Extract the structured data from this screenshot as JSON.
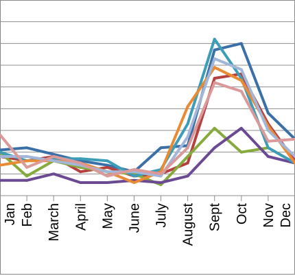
{
  "chart_data": {
    "type": "line",
    "title": "",
    "xlabel": "",
    "ylabel": "",
    "categories": [
      "Jan",
      "Feb",
      "March",
      "April",
      "May",
      "June",
      "July",
      "August",
      "Sept",
      "Oct",
      "Nov",
      "Dec"
    ],
    "ylim": [
      0,
      9
    ],
    "grid": true,
    "legend": "none",
    "series": [
      {
        "color": "#3a6fa8",
        "values": [
          2.1,
          2.2,
          1.9,
          1.6,
          1.4,
          1.1,
          2.2,
          2.3,
          6.7,
          7.0,
          3.8,
          2.6
        ]
      },
      {
        "color": "#b5413e",
        "values": [
          1.8,
          1.6,
          1.8,
          1.1,
          1.3,
          0.9,
          1.0,
          1.5,
          5.4,
          5.6,
          3.3,
          1.6
        ]
      },
      {
        "color": "#86aa3d",
        "values": [
          2.0,
          0.9,
          1.6,
          1.3,
          1.1,
          1.0,
          0.5,
          1.8,
          3.1,
          2.0,
          2.2,
          1.5
        ]
      },
      {
        "color": "#6c4a93",
        "values": [
          0.7,
          0.7,
          1.0,
          0.6,
          0.6,
          0.7,
          0.6,
          0.9,
          2.2,
          3.1,
          1.8,
          1.5
        ]
      },
      {
        "color": "#3d9db8",
        "values": [
          2.0,
          1.6,
          1.7,
          1.7,
          1.6,
          0.9,
          1.2,
          3.3,
          7.2,
          5.4,
          2.2,
          1.5
        ]
      },
      {
        "color": "#e98b34",
        "values": [
          1.4,
          1.6,
          1.6,
          1.5,
          1.1,
          0.6,
          1.1,
          4.1,
          5.9,
          5.3,
          3.2,
          1.5
        ]
      },
      {
        "color": "#a1b6d8",
        "values": [
          1.8,
          1.8,
          1.6,
          1.4,
          1.1,
          1.1,
          0.9,
          2.7,
          6.3,
          5.8,
          3.0,
          1.8
        ]
      },
      {
        "color": "#db9a99",
        "values": [
          2.8,
          1.3,
          1.8,
          1.5,
          0.9,
          1.2,
          1.0,
          2.2,
          5.2,
          4.8,
          2.5,
          2.6
        ]
      }
    ]
  }
}
